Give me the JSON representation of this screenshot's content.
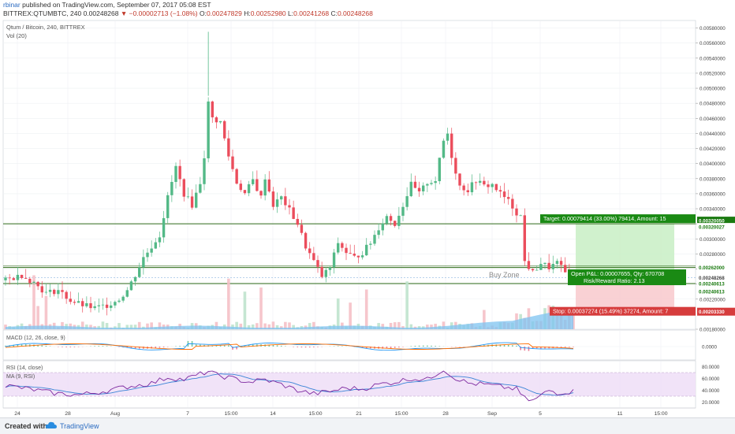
{
  "header": {
    "author": "rbinar",
    "published": "published on TradingView.com, September 07, 2017 05:08 EST",
    "symbol": "BITTREX:QTUMBTC, 240",
    "last": "0.00248268",
    "change": "▼ −0.00002713 (−1.08%)",
    "o_label": "O:",
    "o": "0.00247829",
    "h_label": "H:",
    "h": "0.00252980",
    "l_label": "L:",
    "l": "0.00241268",
    "c_label": "C:",
    "c": "0.00248268"
  },
  "footer": {
    "created": "Created with",
    "brand": "TradingView"
  },
  "colors": {
    "up": "#53b987",
    "down": "#eb4d5c",
    "hline": "#2f6b1a",
    "volume_ma": "#7ec3f0",
    "macd": "#2196f3",
    "signal": "#ff6d00",
    "rsi": "#7e2aa0",
    "rsi_ma": "#3a84d6"
  },
  "chart_data": [
    {
      "type": "candlestick",
      "title": "Qtum / Bitcoin, 240, BITTREX",
      "indicator": "Vol (20)",
      "ylim": [
        0.0018,
        0.0059
      ],
      "y_ticks": [
        "0.00580000",
        "0.00560000",
        "0.00540000",
        "0.00520000",
        "0.00500000",
        "0.00480000",
        "0.00460000",
        "0.00440000",
        "0.00420000",
        "0.00400000",
        "0.00380000",
        "0.00360000",
        "0.00340000",
        "0.00320000",
        "0.00300000",
        "0.00280000",
        "0.00260000",
        "0.00240000",
        "0.00220000",
        "0.00180000"
      ],
      "x_ticks": [
        "24",
        "28",
        "Aug",
        "7",
        "15:00",
        "14",
        "15:00",
        "21",
        "15:00",
        "28",
        "Sep",
        "5",
        "11",
        "15:00"
      ],
      "close_path": [
        [
          0,
          0.00245
        ],
        [
          4,
          0.00252
        ],
        [
          7,
          0.00242
        ],
        [
          10,
          0.00228
        ],
        [
          13,
          0.00232
        ],
        [
          16,
          0.00218
        ],
        [
          19,
          0.00212
        ],
        [
          22,
          0.00208
        ],
        [
          25,
          0.00212
        ],
        [
          28,
          0.0022
        ],
        [
          30,
          0.00232
        ],
        [
          32,
          0.00252
        ],
        [
          34,
          0.00275
        ],
        [
          36,
          0.0029
        ],
        [
          38,
          0.00305
        ],
        [
          40,
          0.00355
        ],
        [
          42,
          0.00395
        ],
        [
          44,
          0.0036
        ],
        [
          46,
          0.00345
        ],
        [
          48,
          0.00375
        ],
        [
          49,
          0.0041
        ],
        [
          50,
          0.0048
        ],
        [
          51,
          0.0046
        ],
        [
          53,
          0.00455
        ],
        [
          55,
          0.0041
        ],
        [
          57,
          0.00375
        ],
        [
          59,
          0.0036
        ],
        [
          61,
          0.00378
        ],
        [
          63,
          0.00355
        ],
        [
          64,
          0.00382
        ],
        [
          66,
          0.00345
        ],
        [
          68,
          0.00355
        ],
        [
          70,
          0.00338
        ],
        [
          72,
          0.0032
        ],
        [
          74,
          0.0029
        ],
        [
          76,
          0.0027
        ],
        [
          78,
          0.0025
        ],
        [
          80,
          0.00262
        ],
        [
          82,
          0.00295
        ],
        [
          84,
          0.00282
        ],
        [
          86,
          0.00275
        ],
        [
          88,
          0.00282
        ],
        [
          90,
          0.00295
        ],
        [
          92,
          0.00315
        ],
        [
          94,
          0.0033
        ],
        [
          96,
          0.0032
        ],
        [
          98,
          0.00345
        ],
        [
          100,
          0.00372
        ],
        [
          102,
          0.0036
        ],
        [
          104,
          0.00375
        ],
        [
          106,
          0.00378
        ],
        [
          108,
          0.0043
        ],
        [
          109,
          0.0044
        ],
        [
          110,
          0.0041
        ],
        [
          112,
          0.0037
        ],
        [
          114,
          0.00365
        ],
        [
          116,
          0.00378
        ],
        [
          118,
          0.0037
        ],
        [
          120,
          0.00372
        ],
        [
          122,
          0.0036
        ],
        [
          124,
          0.0035
        ],
        [
          126,
          0.00335
        ],
        [
          127,
          0.0033
        ],
        [
          128,
          0.0027
        ],
        [
          130,
          0.00255
        ],
        [
          132,
          0.00268
        ],
        [
          134,
          0.00262
        ],
        [
          136,
          0.00268
        ],
        [
          138,
          0.00255
        ],
        [
          139,
          0.00252
        ],
        [
          140,
          0.00248
        ]
      ],
      "last_price": "0.00248268",
      "horizontal_levels": [
        {
          "price": 0.00320027,
          "label": "0.00320027"
        },
        {
          "price": 0.00262,
          "label": "0.00262000"
        },
        {
          "price": 0.00240613,
          "label": "0.00240613"
        }
      ],
      "annotations": {
        "buy_zone": "Buy Zone",
        "target": "Target: 0.00079414 (33.00%) 79414, Amount: 15",
        "target_price": "0.00320050",
        "open_pl": "Open P&L: 0.00007655, Qty: 670708",
        "rr": "Risk/Reward Ratio: 2.13",
        "stop": "Stop: 0.00037274 (15.49%) 37274, Amount: 7",
        "stop_price": "0.00203330",
        "countdown": "01:51:21",
        "vol_label": "0.00240613",
        "entry": 0.00240613,
        "target_level": 0.0032005,
        "stop_level": 0.0020333
      },
      "price_label_last": "0.00248268",
      "price_label_mid": "0.00240613"
    },
    {
      "type": "line",
      "title": "MACD (12, 26, close, 9)",
      "y_ticks": [
        "0.0000"
      ]
    },
    {
      "type": "line",
      "title": "RSI (14, close)",
      "subtitle": "MA (9, RSI)",
      "y_ticks": [
        "80.0000",
        "60.0000",
        "40.0000",
        "20.0000"
      ],
      "ylim": [
        10,
        90
      ],
      "bands": [
        70,
        30
      ],
      "rsi_path": [
        [
          0,
          48
        ],
        [
          6,
          42
        ],
        [
          12,
          35
        ],
        [
          18,
          32
        ],
        [
          24,
          38
        ],
        [
          30,
          46
        ],
        [
          36,
          52
        ],
        [
          40,
          62
        ],
        [
          44,
          58
        ],
        [
          50,
          72
        ],
        [
          52,
          66
        ],
        [
          56,
          60
        ],
        [
          60,
          54
        ],
        [
          64,
          58
        ],
        [
          68,
          50
        ],
        [
          72,
          40
        ],
        [
          76,
          34
        ],
        [
          80,
          38
        ],
        [
          84,
          44
        ],
        [
          88,
          42
        ],
        [
          92,
          50
        ],
        [
          96,
          54
        ],
        [
          100,
          60
        ],
        [
          104,
          58
        ],
        [
          108,
          76
        ],
        [
          110,
          64
        ],
        [
          114,
          52
        ],
        [
          118,
          50
        ],
        [
          122,
          46
        ],
        [
          126,
          42
        ],
        [
          128,
          26
        ],
        [
          130,
          22
        ],
        [
          134,
          40
        ],
        [
          136,
          36
        ],
        [
          140,
          38
        ]
      ]
    }
  ]
}
